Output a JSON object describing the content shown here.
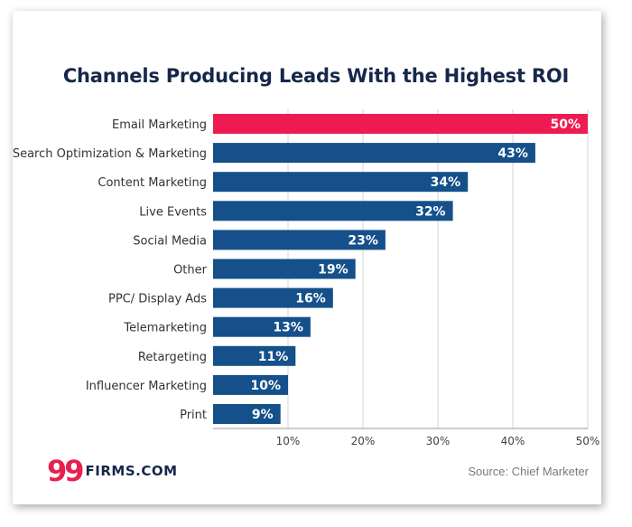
{
  "chart_data": {
    "type": "bar",
    "orientation": "horizontal",
    "title": "Channels Producing Leads With the Highest ROI",
    "categories": [
      "Email Marketing",
      "Search Optimization & Marketing",
      "Content Marketing",
      "Live Events",
      "Social Media",
      "Other",
      "PPC/ Display Ads",
      "Telemarketing",
      "Retargeting",
      "Influencer Marketing",
      "Print"
    ],
    "values": [
      50,
      43,
      34,
      32,
      23,
      19,
      16,
      13,
      11,
      10,
      9
    ],
    "data_labels": [
      "50%",
      "43%",
      "34%",
      "32%",
      "23%",
      "19%",
      "16%",
      "13%",
      "11%",
      "10%",
      "9%"
    ],
    "highlight_index": 0,
    "xlim": [
      0,
      50
    ],
    "x_ticks": [
      10,
      20,
      30,
      40,
      50
    ],
    "x_tick_labels": [
      "10%",
      "20%",
      "30%",
      "40%",
      "50%"
    ],
    "grid": true,
    "colors": {
      "bar": "#15508a",
      "highlight": "#ee1b52",
      "grid": "#d4d4d4",
      "title": "#16274a"
    }
  },
  "brand": {
    "mark": "99",
    "name": "FIRMS.COM"
  },
  "source": "Source: Chief Marketer"
}
